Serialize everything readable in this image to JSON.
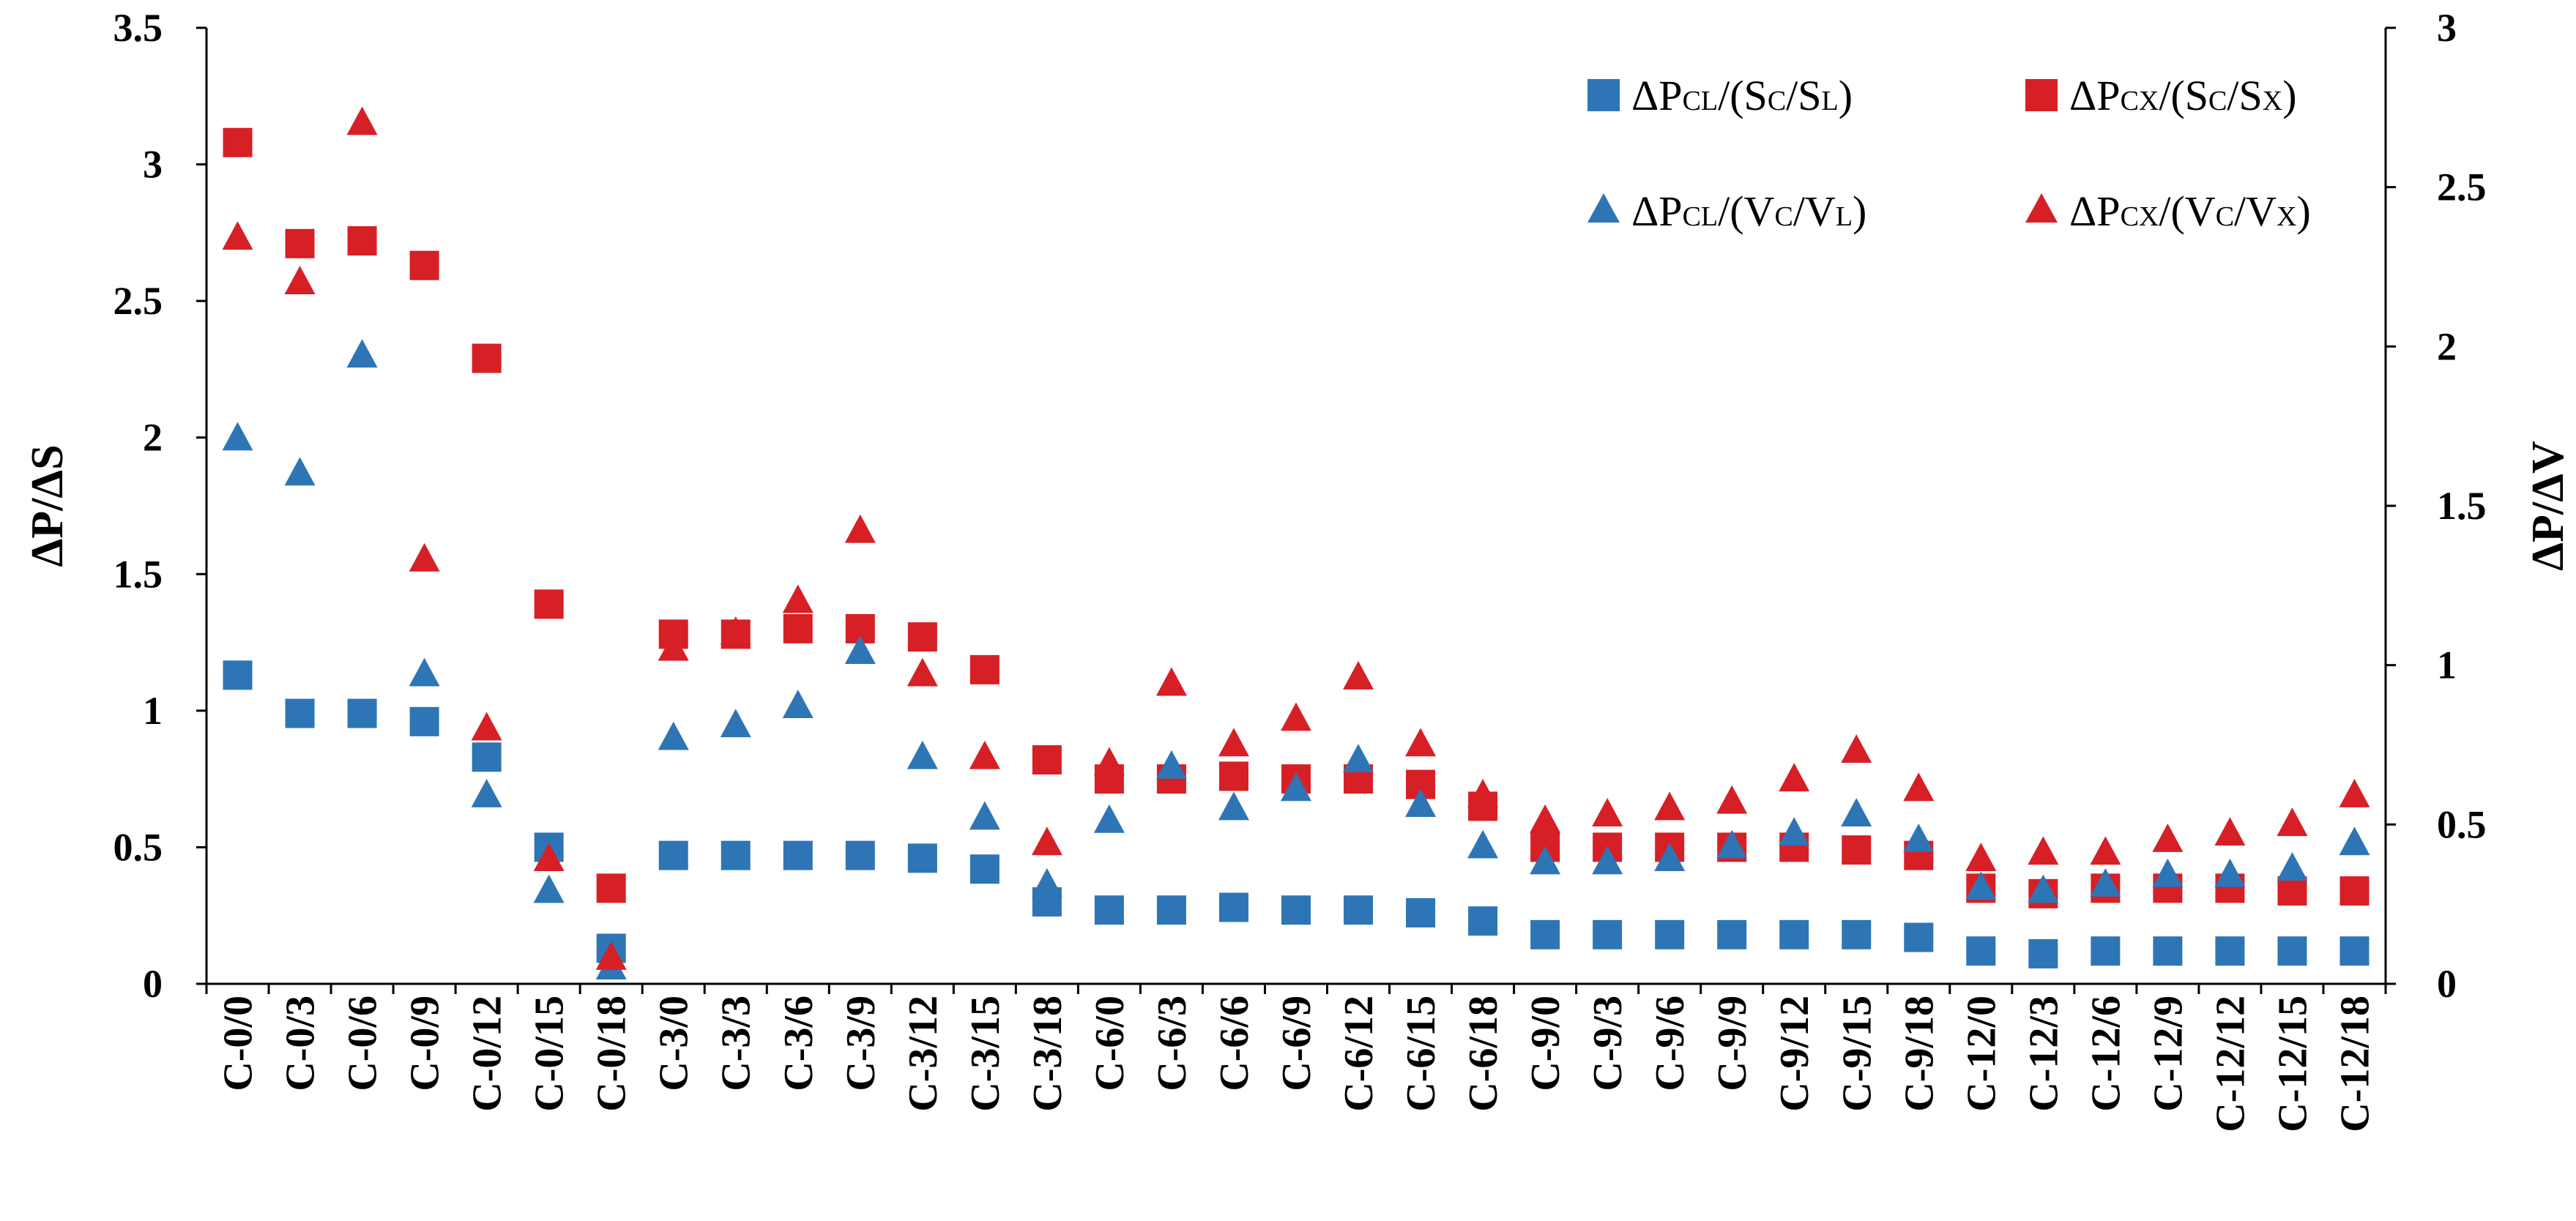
{
  "chart_data": {
    "type": "scatter",
    "title": "",
    "xlabel": "",
    "ylabel_left": "ΔP/ΔS",
    "ylabel_right": "ΔP/ΔV",
    "ylim_left": [
      0,
      3.5
    ],
    "ylim_right": [
      0,
      3
    ],
    "yticks_left": [
      "0",
      "0.5",
      "1",
      "1.5",
      "2",
      "2.5",
      "3",
      "3.5"
    ],
    "yticks_right": [
      "0",
      "0.5",
      "1",
      "1.5",
      "2",
      "2.5",
      "3"
    ],
    "grid": false,
    "legend_position": "top-right",
    "categories": [
      "C-0/0",
      "C-0/3",
      "C-0/6",
      "C-0/9",
      "C-0/12",
      "C-0/15",
      "C-0/18",
      "C-3/0",
      "C-3/3",
      "C-3/6",
      "C-3/9",
      "C-3/12",
      "C-3/15",
      "C-3/18",
      "C-6/0",
      "C-6/3",
      "C-6/6",
      "C-6/9",
      "C-6/12",
      "C-6/15",
      "C-6/18",
      "C-9/0",
      "C-9/3",
      "C-9/6",
      "C-9/9",
      "C-9/12",
      "C-9/15",
      "C-9/18",
      "C-12/0",
      "C-12/3",
      "C-12/6",
      "C-12/9",
      "C-12/12",
      "C-12/15",
      "C-12/18"
    ],
    "series": [
      {
        "name": "ΔPCL/(SC/SL)",
        "legend": {
          "base": "ΔP",
          "sub1": "CL",
          "mid": "/(S",
          "sub2": "C",
          "mid2": "/S",
          "sub3": "L",
          "end": ")"
        },
        "axis": "left",
        "marker": "square",
        "color": "#2E75B6",
        "values": [
          1.13,
          0.99,
          0.99,
          0.96,
          0.83,
          0.5,
          0.13,
          0.47,
          0.47,
          0.47,
          0.47,
          0.46,
          0.42,
          0.3,
          0.27,
          0.27,
          0.28,
          0.27,
          0.27,
          0.26,
          0.23,
          0.18,
          0.18,
          0.18,
          0.18,
          0.18,
          0.18,
          0.17,
          0.12,
          0.11,
          0.12,
          0.12,
          0.12,
          0.12,
          0.12
        ]
      },
      {
        "name": "ΔPCX/(SC/SX)",
        "legend": {
          "base": "ΔP",
          "sub1": "CX",
          "mid": "/(S",
          "sub2": "C",
          "mid2": "/S",
          "sub3": "X",
          "end": ")"
        },
        "axis": "left",
        "marker": "square",
        "color": "#D71F26",
        "values": [
          3.08,
          2.71,
          2.72,
          2.63,
          2.29,
          1.39,
          0.35,
          1.28,
          1.28,
          1.3,
          1.3,
          1.27,
          1.15,
          0.82,
          0.75,
          0.75,
          0.76,
          0.75,
          0.75,
          0.73,
          0.65,
          0.5,
          0.5,
          0.5,
          0.5,
          0.5,
          0.49,
          0.47,
          0.35,
          0.33,
          0.35,
          0.35,
          0.35,
          0.34,
          0.34
        ]
      },
      {
        "name": "ΔPCL/(VC/VL)",
        "legend": {
          "base": "ΔP",
          "sub1": "CL",
          "mid": "/(V",
          "sub2": "C",
          "mid2": "/V",
          "sub3": "L",
          "end": ")"
        },
        "axis": "right",
        "marker": "triangle",
        "color": "#2E75B6",
        "values": [
          1.71,
          1.6,
          1.97,
          0.97,
          0.59,
          0.29,
          0.05,
          0.77,
          0.81,
          0.87,
          1.04,
          0.71,
          0.52,
          0.31,
          0.51,
          0.68,
          0.55,
          0.61,
          0.7,
          0.56,
          0.43,
          0.38,
          0.38,
          0.39,
          0.43,
          0.47,
          0.53,
          0.45,
          0.3,
          0.29,
          0.31,
          0.34,
          0.34,
          0.36,
          0.44
        ]
      },
      {
        "name": "ΔPCX/(VC/VX)",
        "legend": {
          "base": "ΔP",
          "sub1": "CX",
          "mid": "/(V",
          "sub2": "C",
          "mid2": "/V",
          "sub3": "X",
          "end": ")"
        },
        "axis": "right",
        "marker": "triangle",
        "color": "#D71F26",
        "values": [
          2.34,
          2.2,
          2.7,
          1.33,
          0.8,
          0.39,
          0.08,
          1.05,
          1.1,
          1.2,
          1.42,
          0.97,
          0.71,
          0.44,
          0.69,
          0.94,
          0.75,
          0.83,
          0.96,
          0.75,
          0.59,
          0.51,
          0.53,
          0.55,
          0.57,
          0.64,
          0.73,
          0.61,
          0.39,
          0.41,
          0.41,
          0.45,
          0.47,
          0.5,
          0.59
        ]
      }
    ]
  }
}
